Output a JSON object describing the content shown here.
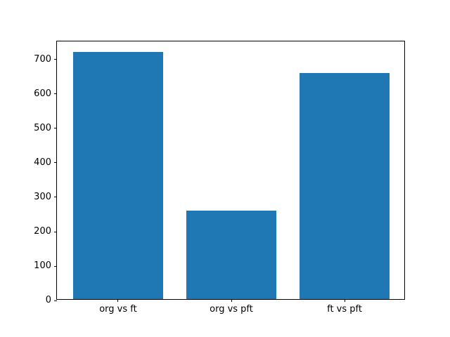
{
  "figure": {
    "background": "#ffffff",
    "axes_edge_color": "#000000",
    "tick_color": "#000000"
  },
  "chart_data": {
    "type": "bar",
    "categories": [
      "org vs ft",
      "org vs pft",
      "ft vs pft"
    ],
    "values": [
      717,
      257,
      656
    ],
    "title": "",
    "xlabel": "",
    "ylabel": "",
    "ylim": [
      0,
      753
    ],
    "yticks": [
      0,
      100,
      200,
      300,
      400,
      500,
      600,
      700
    ],
    "ytick_labels": [
      "0",
      "100",
      "200",
      "300",
      "400",
      "500",
      "600",
      "700"
    ],
    "bar_color": "#1f77b4",
    "bar_relative_width": 0.8,
    "grid": false,
    "legend": null
  }
}
